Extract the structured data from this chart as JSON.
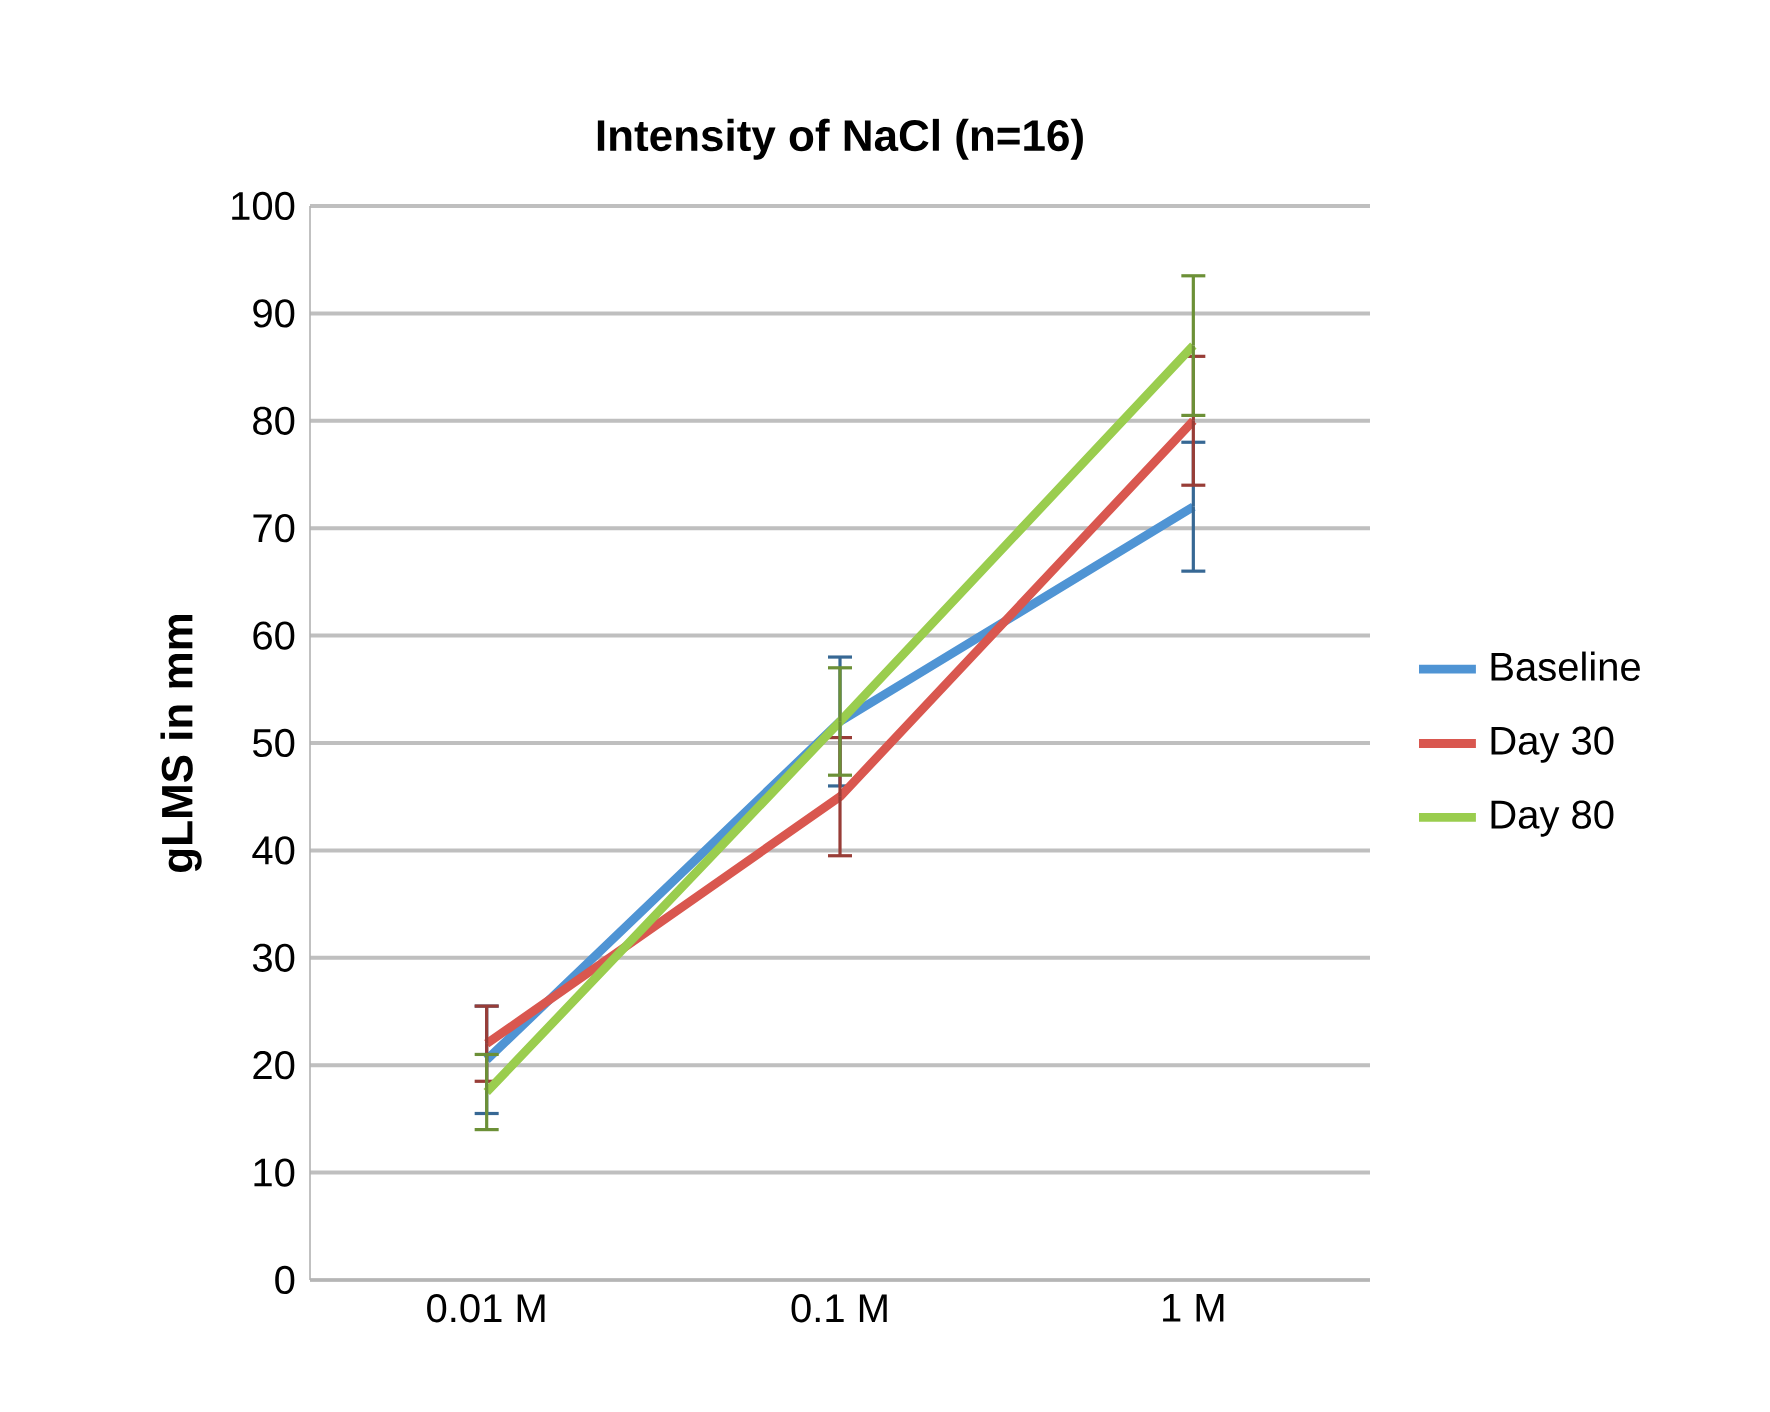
{
  "chart_data": {
    "type": "line",
    "title": "Intensity of NaCl (n=16)",
    "ylabel": "gLMS in mm",
    "categories": [
      "0.01 M",
      "0.1 M",
      "1 M"
    ],
    "series": [
      {
        "name": "Baseline",
        "color": "#4f94d4",
        "values": [
          20.5,
          52,
          72
        ],
        "errors": [
          5,
          6,
          6
        ]
      },
      {
        "name": "Day 30",
        "color": "#d9574f",
        "values": [
          22,
          45,
          80
        ],
        "errors": [
          3.5,
          5.5,
          6
        ]
      },
      {
        "name": "Day 80",
        "color": "#9acd4e",
        "values": [
          17.5,
          52,
          87
        ],
        "errors": [
          3.5,
          5,
          6.5
        ]
      }
    ],
    "ylim": [
      0,
      100
    ],
    "yticks": [
      0,
      10,
      20,
      30,
      40,
      50,
      60,
      70,
      80,
      90,
      100
    ],
    "grid": "y",
    "legend": "right",
    "marker": "none",
    "line_style": "solid"
  }
}
